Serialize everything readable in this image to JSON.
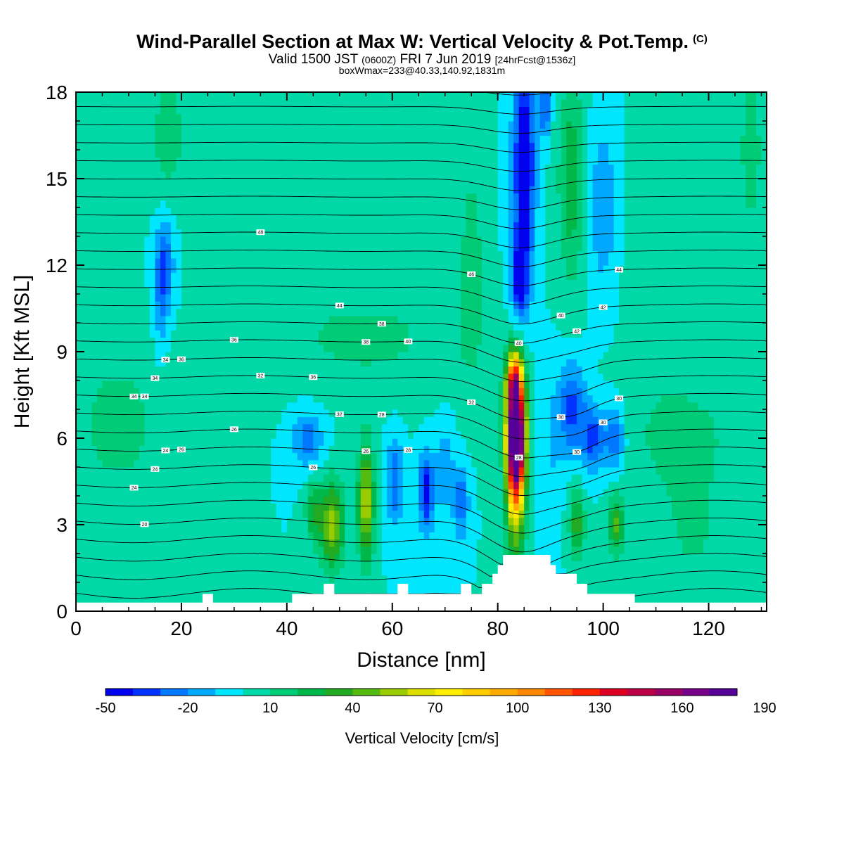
{
  "header": {
    "title": "Wind-Parallel Section at Max W: Vertical Velocity & Pot.Temp.",
    "title_mark": "(C)",
    "subtitle_main": "Valid 1500 JST",
    "subtitle_zulu": "(0600Z)",
    "subtitle_date": "FRI 7 Jun 2019",
    "subtitle_fcst": "[24hrFcst@1536z]",
    "info": "boxWmax=233@40.33,140.92,1831m"
  },
  "chart_data": {
    "type": "heatmap",
    "xlabel": "Distance [nm]",
    "ylabel": "Height [Kft MSL]",
    "xlim": [
      0,
      131
    ],
    "ylim": [
      0,
      18
    ],
    "x_ticks": [
      "0",
      "20",
      "40",
      "60",
      "80",
      "100",
      "120"
    ],
    "y_ticks": [
      "0",
      "3",
      "6",
      "9",
      "12",
      "15",
      "18"
    ],
    "background_value": 0,
    "colorbar": {
      "title": "Vertical Velocity [cm/s]",
      "min": -50,
      "step": 10,
      "tick_labels": [
        "-50",
        "-20",
        "10",
        "40",
        "70",
        "100",
        "130",
        "160",
        "190"
      ],
      "colors": [
        "#0000ee",
        "#0033ff",
        "#0077ff",
        "#00a8ff",
        "#00e6ff",
        "#00d8a8",
        "#00cc77",
        "#00b84a",
        "#22aa22",
        "#55bb11",
        "#99cc00",
        "#dddd00",
        "#ffee00",
        "#ffcc00",
        "#ffaa00",
        "#ff8800",
        "#ff5500",
        "#ff2200",
        "#dd0022",
        "#bb0044",
        "#990066",
        "#770088",
        "#550099"
      ]
    },
    "features": [
      {
        "x": 83.5,
        "y": 6.2,
        "sx": 1.6,
        "sy": 2.0,
        "v": 190
      },
      {
        "x": 83.3,
        "y": 5.0,
        "sx": 1.8,
        "sy": 3.2,
        "v": 70
      },
      {
        "x": 83.0,
        "y": 8.0,
        "sx": 1.5,
        "sy": 0.8,
        "v": 60
      },
      {
        "x": 85.0,
        "y": 15.5,
        "sx": 2.0,
        "sy": 4.0,
        "v": -55
      },
      {
        "x": 84.0,
        "y": 11.5,
        "sx": 1.6,
        "sy": 1.5,
        "v": -40
      },
      {
        "x": 89.0,
        "y": 17.5,
        "sx": 1.0,
        "sy": 1.0,
        "v": -35
      },
      {
        "x": 94.0,
        "y": 15.0,
        "sx": 2.5,
        "sy": 3.5,
        "v": 28
      },
      {
        "x": 94.0,
        "y": 7.0,
        "sx": 2.5,
        "sy": 1.6,
        "v": -35
      },
      {
        "x": 98.0,
        "y": 6.0,
        "sx": 2.0,
        "sy": 1.2,
        "v": -35
      },
      {
        "x": 102.0,
        "y": 6.0,
        "sx": 2.0,
        "sy": 1.2,
        "v": -30
      },
      {
        "x": 100.0,
        "y": 14.0,
        "sx": 3.0,
        "sy": 3.0,
        "v": -18
      },
      {
        "x": 48.5,
        "y": 3.0,
        "sx": 2.2,
        "sy": 1.5,
        "v": 55
      },
      {
        "x": 55.0,
        "y": 3.8,
        "sx": 1.5,
        "sy": 2.0,
        "v": 60
      },
      {
        "x": 45.0,
        "y": 3.5,
        "sx": 1.5,
        "sy": 1.0,
        "v": 30
      },
      {
        "x": 102.5,
        "y": 3.0,
        "sx": 1.5,
        "sy": 1.0,
        "v": 40
      },
      {
        "x": 95.0,
        "y": 3.0,
        "sx": 1.4,
        "sy": 1.2,
        "v": 35
      },
      {
        "x": 66.5,
        "y": 4.2,
        "sx": 1.5,
        "sy": 1.3,
        "v": -45
      },
      {
        "x": 60.5,
        "y": 4.5,
        "sx": 1.5,
        "sy": 1.5,
        "v": -30
      },
      {
        "x": 73.0,
        "y": 3.8,
        "sx": 1.5,
        "sy": 1.2,
        "v": -30
      },
      {
        "x": 70.0,
        "y": 5.0,
        "sx": 1.5,
        "sy": 1.5,
        "v": -20
      },
      {
        "x": 44.0,
        "y": 6.0,
        "sx": 3.0,
        "sy": 1.0,
        "v": -25
      },
      {
        "x": 17.0,
        "y": 12.0,
        "sx": 1.5,
        "sy": 1.5,
        "v": -28
      },
      {
        "x": 16.0,
        "y": 11.0,
        "sx": 1.2,
        "sy": 2.0,
        "v": -18
      },
      {
        "x": 17.5,
        "y": 16.5,
        "sx": 3.0,
        "sy": 2.0,
        "v": 18
      },
      {
        "x": 8.0,
        "y": 6.5,
        "sx": 8.0,
        "sy": 2.5,
        "v": 15
      },
      {
        "x": 55.0,
        "y": 9.5,
        "sx": 20.0,
        "sy": 2.0,
        "v": 12
      },
      {
        "x": 115.0,
        "y": 6.0,
        "sx": 12.0,
        "sy": 2.5,
        "v": 13
      },
      {
        "x": 75.0,
        "y": 12.0,
        "sx": 2.5,
        "sy": 4.0,
        "v": 15
      },
      {
        "x": 128.0,
        "y": 16.0,
        "sx": 3.0,
        "sy": 4.0,
        "v": 13
      },
      {
        "x": 110.0,
        "y": 13.0,
        "sx": 6.0,
        "sy": 4.0,
        "v": 10
      },
      {
        "x": 90.0,
        "y": 5.5,
        "sx": 2.0,
        "sy": 3.0,
        "v": -10
      },
      {
        "x": 40.0,
        "y": 15.0,
        "sx": 10.0,
        "sy": 3.0,
        "v": 8
      },
      {
        "x": 117.0,
        "y": 2.5,
        "sx": 6.0,
        "sy": 2.0,
        "v": 10
      }
    ],
    "terrain": [
      [
        0,
        0.3
      ],
      [
        24,
        0.3
      ],
      [
        24,
        0.6
      ],
      [
        26,
        0.6
      ],
      [
        26,
        0.3
      ],
      [
        41,
        0.3
      ],
      [
        41,
        0.6
      ],
      [
        47,
        0.6
      ],
      [
        47,
        0.95
      ],
      [
        49,
        0.95
      ],
      [
        49,
        0.6
      ],
      [
        61,
        0.6
      ],
      [
        61,
        0.95
      ],
      [
        63,
        0.95
      ],
      [
        63,
        0.6
      ],
      [
        73,
        0.6
      ],
      [
        73,
        0.95
      ],
      [
        75,
        0.95
      ],
      [
        75,
        0.6
      ],
      [
        77,
        0.6
      ],
      [
        77,
        0.95
      ],
      [
        79,
        0.95
      ],
      [
        79,
        1.3
      ],
      [
        80,
        1.3
      ],
      [
        80,
        1.6
      ],
      [
        81,
        1.6
      ],
      [
        81,
        1.95
      ],
      [
        90,
        1.95
      ],
      [
        90,
        1.6
      ],
      [
        91,
        1.6
      ],
      [
        91,
        1.3
      ],
      [
        95,
        1.3
      ],
      [
        95,
        0.95
      ],
      [
        97,
        0.95
      ],
      [
        97,
        0.6
      ],
      [
        106,
        0.6
      ],
      [
        106,
        0.3
      ],
      [
        131,
        0.3
      ]
    ],
    "contours": {
      "base_level": 10,
      "step": 2,
      "count": 42,
      "label_values": [
        "20",
        "24",
        "24",
        "24",
        "26",
        "26",
        "26",
        "26",
        "28",
        "28",
        "28",
        "30",
        "30",
        "30",
        "30",
        "32",
        "32",
        "32",
        "34",
        "34",
        "34",
        "34",
        "36",
        "36",
        "36",
        "38",
        "38",
        "40",
        "40",
        "40",
        "42",
        "42",
        "44",
        "44",
        "46",
        "48"
      ]
    }
  }
}
